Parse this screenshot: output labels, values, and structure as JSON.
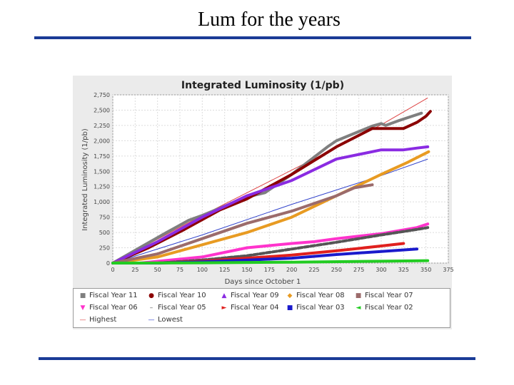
{
  "slide": {
    "title": "Lum for the years"
  },
  "chart_data": {
    "type": "line",
    "title": "Integrated Luminosity (1/pb)",
    "xlabel": "Days since October 1",
    "ylabel": "Integrated Luminosity (1/pb)",
    "xlim": [
      0,
      375
    ],
    "ylim": [
      0,
      2750
    ],
    "xticks": [
      0,
      25,
      50,
      75,
      100,
      125,
      150,
      175,
      200,
      225,
      250,
      275,
      300,
      325,
      350,
      375
    ],
    "yticks": [
      0,
      250,
      500,
      750,
      1000,
      1250,
      1500,
      1750,
      2000,
      2250,
      2500,
      2750
    ],
    "ytick_labels": [
      "0",
      "250",
      "500",
      "750",
      "1,000",
      "1,250",
      "1,500",
      "1,750",
      "2,000",
      "2,250",
      "2,500",
      "2,750"
    ],
    "grid": true,
    "legend_position": "bottom",
    "series": [
      {
        "name": "Fiscal Year 11",
        "color": "#7f7f7f",
        "marker": "square",
        "x": [
          0,
          30,
          60,
          85,
          100,
          150,
          170,
          200,
          240,
          250,
          275,
          290,
          300,
          305,
          320,
          345
        ],
        "y": [
          0,
          250,
          500,
          700,
          780,
          1080,
          1150,
          1450,
          1900,
          2000,
          2150,
          2240,
          2280,
          2250,
          2330,
          2450
        ]
      },
      {
        "name": "Fiscal Year 10",
        "color": "#8b0000",
        "marker": "circle",
        "x": [
          0,
          40,
          80,
          120,
          150,
          200,
          250,
          290,
          325,
          340,
          350,
          355
        ],
        "y": [
          0,
          250,
          550,
          870,
          1050,
          1450,
          1900,
          2200,
          2200,
          2300,
          2400,
          2480
        ]
      },
      {
        "name": "Fiscal Year 09",
        "color": "#8a2be2",
        "marker": "triangle-up",
        "x": [
          0,
          50,
          100,
          150,
          200,
          250,
          300,
          325,
          340,
          352
        ],
        "y": [
          0,
          350,
          750,
          1100,
          1350,
          1700,
          1850,
          1850,
          1880,
          1900
        ]
      },
      {
        "name": "Fiscal Year 08",
        "color": "#e89b22",
        "marker": "diamond",
        "x": [
          0,
          50,
          100,
          150,
          200,
          250,
          300,
          330,
          353
        ],
        "y": [
          0,
          100,
          300,
          500,
          750,
          1100,
          1450,
          1650,
          1820
        ]
      },
      {
        "name": "Fiscal Year 07",
        "color": "#9b6b6b",
        "marker": "square",
        "x": [
          0,
          50,
          100,
          150,
          200,
          250,
          270,
          290
        ],
        "y": [
          0,
          150,
          400,
          650,
          850,
          1100,
          1230,
          1280
        ]
      },
      {
        "name": "Fiscal Year 06",
        "color": "#ff33cc",
        "marker": "triangle-down",
        "x": [
          30,
          100,
          150,
          200,
          225,
          250,
          300,
          340,
          352
        ],
        "y": [
          0,
          100,
          250,
          320,
          350,
          400,
          480,
          580,
          640
        ]
      },
      {
        "name": "Fiscal Year 05",
        "color": "#555555",
        "marker": "dash",
        "x": [
          50,
          100,
          150,
          200,
          250,
          300,
          340,
          352
        ],
        "y": [
          0,
          50,
          120,
          230,
          340,
          460,
          550,
          580
        ]
      },
      {
        "name": "Fiscal Year 04",
        "color": "#e0201e",
        "marker": "triangle-right",
        "x": [
          50,
          100,
          150,
          200,
          250,
          300,
          325
        ],
        "y": [
          0,
          30,
          80,
          130,
          200,
          280,
          320
        ]
      },
      {
        "name": "Fiscal Year 03",
        "color": "#1a1acc",
        "marker": "square",
        "x": [
          0,
          50,
          100,
          150,
          200,
          250,
          300,
          340
        ],
        "y": [
          0,
          0,
          20,
          50,
          80,
          140,
          190,
          230
        ]
      },
      {
        "name": "Fiscal Year 02",
        "color": "#22cc22",
        "marker": "triangle-left",
        "x": [
          0,
          100,
          200,
          300,
          352
        ],
        "y": [
          0,
          5,
          15,
          30,
          40
        ]
      },
      {
        "name": "Highest",
        "color": "#dd4444",
        "marker": "line",
        "x": [
          0,
          100,
          200,
          300,
          352
        ],
        "y": [
          0,
          780,
          1520,
          2260,
          2700
        ]
      },
      {
        "name": "Lowest",
        "color": "#3344cc",
        "marker": "line",
        "x": [
          0,
          100,
          200,
          300,
          352
        ],
        "y": [
          0,
          460,
          960,
          1430,
          1700
        ]
      }
    ],
    "legend": [
      {
        "label": "Fiscal Year 11",
        "symbol": "■",
        "color": "#7f7f7f"
      },
      {
        "label": "Fiscal Year 10",
        "symbol": "●",
        "color": "#8b0000"
      },
      {
        "label": "Fiscal Year 09",
        "symbol": "▲",
        "color": "#8a2be2"
      },
      {
        "label": "Fiscal Year 08",
        "symbol": "◆",
        "color": "#e89b22"
      },
      {
        "label": "Fiscal Year 07",
        "symbol": "■",
        "color": "#9b6b6b"
      },
      {
        "label": "Fiscal Year 06",
        "symbol": "▼",
        "color": "#ff33cc"
      },
      {
        "label": "Fiscal Year 05",
        "symbol": "–",
        "color": "#555555"
      },
      {
        "label": "Fiscal Year 04",
        "symbol": "►",
        "color": "#e0201e"
      },
      {
        "label": "Fiscal Year 03",
        "symbol": "■",
        "color": "#1a1acc"
      },
      {
        "label": "Fiscal Year 02",
        "symbol": "◄",
        "color": "#22cc22"
      },
      {
        "label": "Highest",
        "symbol": "—",
        "color": "#dd4444"
      },
      {
        "label": "Lowest",
        "symbol": "—",
        "color": "#3344cc"
      }
    ]
  }
}
